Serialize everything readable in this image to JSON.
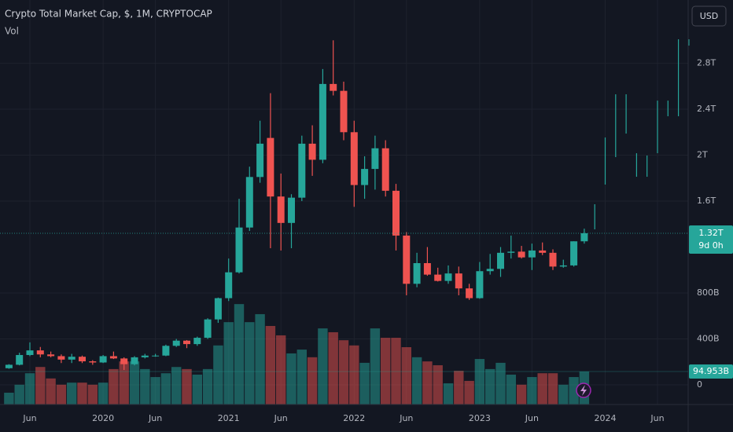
{
  "chart_data": {
    "type": "candlestick",
    "title": "Crypto Total Market Cap, $, 1M, CRYPTOCAP",
    "volume_title": "Vol",
    "currency_button": "USD",
    "up_color": "#26a69a",
    "down_color": "#ef5350",
    "categories": [
      null,
      null,
      "Jun",
      null,
      null,
      null,
      null,
      null,
      null,
      "2020",
      null,
      null,
      null,
      null,
      "Jun",
      null,
      null,
      null,
      null,
      null,
      null,
      "2021",
      null,
      null,
      null,
      null,
      "Jun",
      null,
      null,
      null,
      null,
      null,
      null,
      "2022",
      null,
      null,
      null,
      null,
      "Jun",
      null,
      null,
      null,
      null,
      null,
      null,
      "2023",
      null,
      null,
      null,
      null,
      "Jun",
      null,
      null,
      null,
      null,
      null,
      null,
      "2024",
      null,
      null,
      null,
      null,
      "Jun",
      null,
      null,
      null
    ],
    "open": [
      145,
      175,
      260,
      300,
      265,
      250,
      220,
      245,
      205,
      195,
      250,
      230,
      180,
      240,
      255,
      255,
      340,
      385,
      355,
      410,
      570,
      755,
      980,
      1370,
      1810,
      2150,
      1640,
      1410,
      1630,
      2100,
      1960,
      2620,
      2560,
      2200,
      1740,
      1880,
      2060,
      1690,
      1300,
      880,
      1060,
      960,
      905,
      970,
      840,
      755,
      990,
      1010,
      1150,
      1160,
      1110,
      1170,
      1150,
      1030,
      1040,
      1250,
      null,
      null,
      null,
      null,
      null,
      null,
      null,
      null,
      null,
      null
    ],
    "high": [
      180,
      280,
      370,
      330,
      290,
      265,
      270,
      255,
      215,
      260,
      290,
      240,
      250,
      270,
      270,
      350,
      400,
      390,
      420,
      580,
      760,
      1100,
      1620,
      1900,
      2300,
      2540,
      1840,
      1660,
      2170,
      2260,
      2750,
      3000,
      2640,
      2300,
      1990,
      2170,
      2130,
      1750,
      1330,
      1150,
      1200,
      1020,
      1040,
      1030,
      880,
      1070,
      1140,
      1200,
      1300,
      1210,
      1230,
      1240,
      1180,
      1090,
      1250,
      1360,
      1573,
      2154,
      2530,
      2530,
      2017,
      1997,
      2475,
      2475,
      3009,
      3009
    ],
    "low": [
      140,
      170,
      250,
      240,
      240,
      190,
      190,
      190,
      175,
      190,
      225,
      130,
      170,
      230,
      245,
      250,
      330,
      320,
      340,
      400,
      540,
      730,
      970,
      1340,
      1760,
      1190,
      1170,
      1190,
      1600,
      1820,
      1930,
      2520,
      2130,
      1550,
      1620,
      1700,
      1640,
      1170,
      780,
      850,
      950,
      900,
      880,
      780,
      740,
      750,
      960,
      940,
      1100,
      1100,
      1000,
      1130,
      1000,
      1020,
      1030,
      1230,
      1354,
      1744,
      1983,
      2188,
      1812,
      1812,
      2017,
      2339,
      2339,
      2954
    ],
    "close": [
      175,
      260,
      300,
      265,
      250,
      220,
      245,
      205,
      195,
      250,
      230,
      180,
      240,
      255,
      255,
      340,
      385,
      355,
      410,
      570,
      755,
      980,
      1370,
      1810,
      2100,
      1640,
      1410,
      1630,
      2100,
      1960,
      2620,
      2560,
      2200,
      1740,
      1880,
      2060,
      1690,
      1300,
      880,
      1060,
      960,
      905,
      970,
      840,
      755,
      990,
      1010,
      1150,
      1160,
      1110,
      1170,
      1150,
      1030,
      1040,
      1250,
      1320,
      null,
      null,
      null,
      null,
      null,
      null,
      null,
      null,
      null,
      null
    ],
    "volumes": [
      34,
      57,
      90,
      108,
      75,
      57,
      63,
      63,
      57,
      63,
      102,
      124,
      124,
      102,
      79,
      90,
      108,
      102,
      86,
      102,
      170,
      237,
      289,
      237,
      260,
      226,
      199,
      147,
      158,
      136,
      219,
      208,
      185,
      170,
      120,
      219,
      192,
      192,
      165,
      136,
      124,
      113,
      61,
      97,
      68,
      131,
      102,
      120,
      86,
      57,
      79,
      90,
      90,
      57,
      79,
      94.953,
      null,
      null,
      null,
      null,
      null,
      null,
      null,
      null,
      null,
      null
    ],
    "close_label": "1.32T",
    "countdown": "9d 0h",
    "volume_label": "94.953B",
    "ylim": [
      -171,
      3351
    ],
    "volume_ylim": [
      0,
      1164
    ],
    "yticks": [
      0,
      {
        "value": 400,
        "label": "400B"
      },
      {
        "value": 800,
        "label": "800B"
      },
      {
        "value": 1600,
        "label": "1.6T"
      },
      {
        "value": 2000,
        "label": "2T"
      },
      {
        "value": 2400,
        "label": "2.4T"
      },
      {
        "value": 2800,
        "label": "2.8T"
      }
    ],
    "grid": true
  }
}
